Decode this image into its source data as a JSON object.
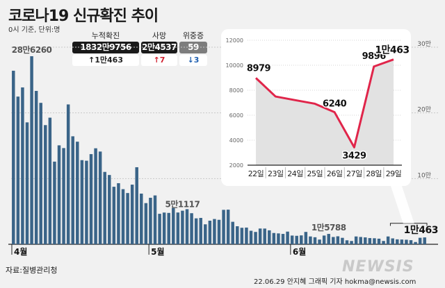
{
  "title": "코로나19 신규확진 추이",
  "subtitle": "0시 기준, 단위:명",
  "stats": {
    "cumulative": {
      "label": "누적확진",
      "value": "1832만9756",
      "change": "↑1만463"
    },
    "deaths": {
      "label": "사망",
      "value": "2만4537",
      "change": "↑7"
    },
    "critical": {
      "label": "위중증",
      "value": "59",
      "change": "↓3"
    }
  },
  "footer": {
    "source": "자료:질병관리청",
    "credit": "22.06.29 안지혜 그래픽 기자 hokma@newsis.com",
    "logo": "NEWSIS"
  },
  "colors": {
    "bar": "#3a6488",
    "line": "#e0254a",
    "up": "#d0202f",
    "down": "#1f5fb0",
    "badge_dark": "#1a1a1a",
    "badge_gray": "#7d7d7d"
  },
  "chart_data": [
    {
      "type": "bar",
      "months": [
        "4월",
        "5월",
        "6월"
      ],
      "y_axis_ticks": [
        "10만",
        "20만",
        "30만"
      ],
      "ylim": [
        0,
        300000
      ],
      "annotations": [
        {
          "label": "28만6260",
          "value": 286260
        },
        {
          "label": "5만1117",
          "value": 51117
        },
        {
          "label": "1만5788",
          "value": 15788
        },
        {
          "label": "1만463",
          "value": 10463
        }
      ],
      "values": [
        264171,
        224820,
        238775,
        185566,
        286260,
        233461,
        215271,
        181391,
        192721,
        125824,
        150599,
        146441,
        212888,
        164364,
        156157,
        128069,
        127196,
        137255,
        146114,
        141155,
        110166,
        105463,
        87555,
        92987,
        83896,
        78012,
        90797,
        117295,
        77130,
        62672,
        70789,
        74356,
        46389,
        48290,
        47746,
        55210,
        48370,
        51117,
        53425,
        47310,
        39476,
        40145,
        30391,
        35922,
        38462,
        37253,
        52425,
        52720,
        34226,
        27470,
        25120,
        25425,
        20586,
        18787,
        23976,
        23935,
        21221,
        17172,
        16566,
        15790,
        19288,
        13277,
        12904,
        13546,
        18818,
        11922,
        10713,
        7184,
        13311,
        15788,
        11104,
        12169,
        9828,
        6047,
        5014,
        11902,
        11118,
        10487,
        9446,
        9178,
        8541,
        5053,
        11891,
        8979,
        7497,
        7205,
        6920,
        6240,
        3429,
        9896,
        10463
      ]
    },
    {
      "type": "line",
      "categories": [
        "22일",
        "23일",
        "24일",
        "25일",
        "26일",
        "27일",
        "28일",
        "29일"
      ],
      "values": [
        8979,
        7497,
        7205,
        6920,
        6240,
        3429,
        9896,
        10463
      ],
      "value_labels": [
        "8979",
        "",
        "",
        "",
        "6240",
        "3429",
        "9896",
        "1만463"
      ],
      "ylim": [
        2000,
        12000
      ],
      "yticks": [
        2000,
        4000,
        6000,
        8000,
        10000,
        12000
      ]
    }
  ]
}
